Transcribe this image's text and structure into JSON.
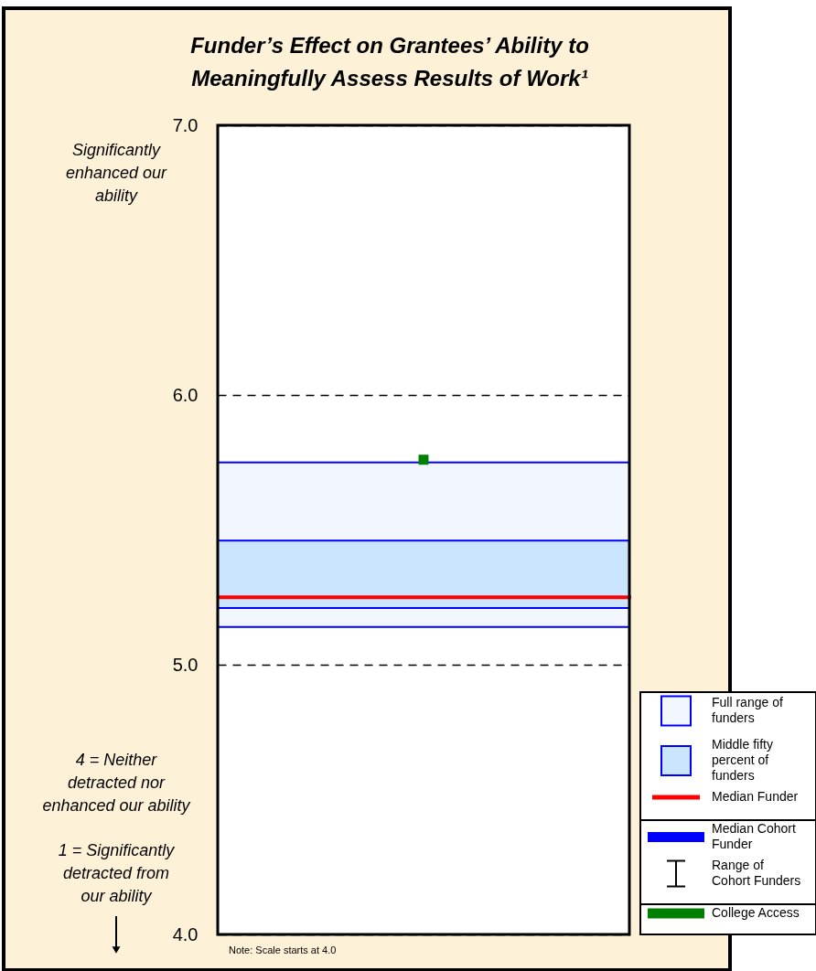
{
  "chart_data": {
    "type": "bar",
    "title": "Funder’s Effect on Grantees’ Ability to Meaningfully Assess Results of Work¹",
    "categories": [
      null
    ],
    "series": [
      {
        "name": "Full range of funders",
        "type": "bar",
        "color": "#f2f7ff",
        "base": [
          5.14
        ],
        "values": [
          0.61
        ]
      },
      {
        "name": "Middle fifty percent of funders",
        "type": "bar",
        "color": "#cce5ff",
        "base": [
          5.21
        ],
        "values": [
          0.25
        ]
      },
      {
        "name": "Median Cohort Funder",
        "type": "line",
        "color": "#0000ff",
        "values": [
          null
        ]
      },
      {
        "name": "Range of Cohort Funders",
        "type": "box",
        "color": "#000000",
        "values": [
          null
        ]
      },
      {
        "name": "College Access",
        "type": "scatter",
        "marker": "square",
        "color": "#008000",
        "values": [
          5.76
        ]
      }
    ],
    "ref_lines": [
      {
        "axis": "y",
        "value": 5.25,
        "label": "Median Funder",
        "color": "#ff0000"
      }
    ],
    "ylim": [
      4,
      7
    ],
    "yticks": [
      {
        "value": 4,
        "label": "4.0"
      },
      {
        "value": 5,
        "label": "5.0"
      },
      {
        "value": 6,
        "label": "6.0"
      },
      {
        "value": 7,
        "label": "7.0"
      }
    ],
    "grid": "y",
    "legend": "bottom right",
    "annotations": [
      "Significantly\nenhanced our\nability",
      "4 = Neither\ndetracted nor\nenhanced our ability",
      "1 = Significantly\ndetracted from\nour ability",
      "Note: Scale starts at 4.0"
    ]
  }
}
